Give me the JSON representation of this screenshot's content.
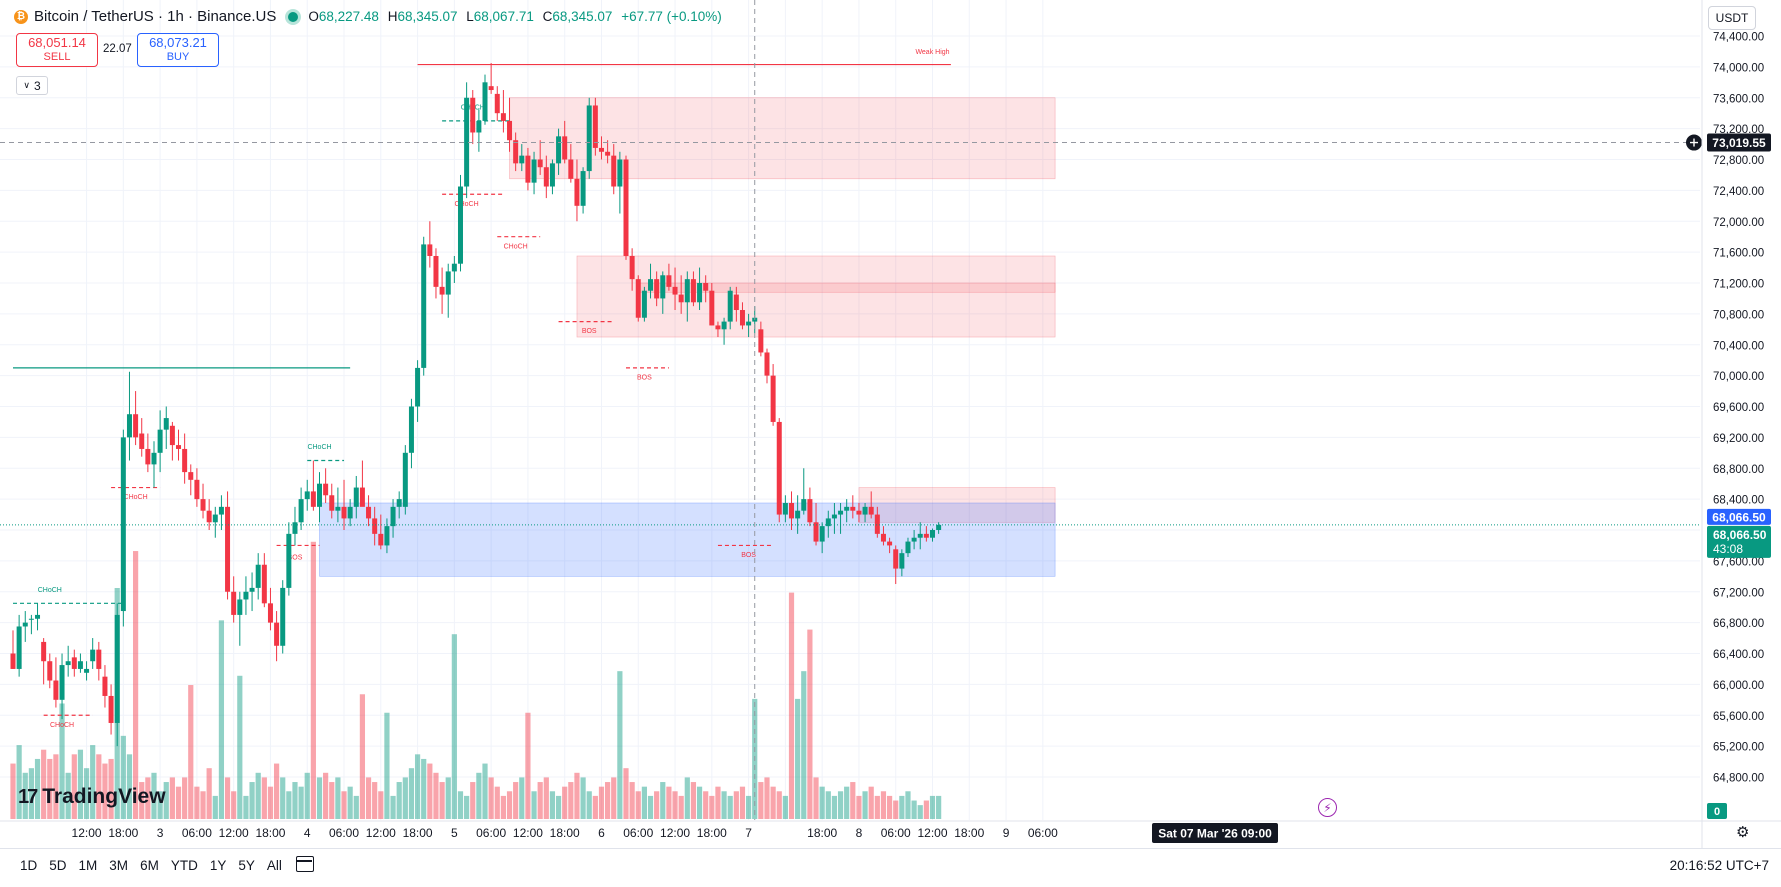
{
  "header": {
    "coin_glyph": "₿",
    "symbol": "Bitcoin / TetherUS · 1h · Binance.US",
    "ohlc": {
      "o_label": "O",
      "o": "68,227.48",
      "h_label": "H",
      "h": "68,345.07",
      "l_label": "L",
      "l": "68,067.71",
      "c_label": "C",
      "c": "68,345.07",
      "change": "+67.77 (+0.10%)"
    }
  },
  "trade": {
    "sell_price": "68,051.14",
    "sell_label": "SELL",
    "spread": "22.07",
    "buy_price": "68,073.21",
    "buy_label": "BUY"
  },
  "indicators": {
    "count": "3"
  },
  "currency": "USDT",
  "crosshair": {
    "price_label": "73,019.55",
    "time_label": "Sat 07 Mar '26   09:00"
  },
  "last_price": {
    "blue_label": "68,066.50",
    "green_label": "68,066.50",
    "countdown": "43:08"
  },
  "volume_label": "0",
  "logo": {
    "mark": "17",
    "text": "TradingView"
  },
  "ranges": [
    "1D",
    "5D",
    "1M",
    "3M",
    "6M",
    "YTD",
    "1Y",
    "5Y",
    "All"
  ],
  "clock": "20:16:52 UTC+7",
  "colors": {
    "up": "#089981",
    "down": "#f23645",
    "supply_zone": "#f23645",
    "demand_zone": "#2962ff"
  },
  "chart_data": {
    "type": "candlestick",
    "interval": "1h",
    "y_axis": {
      "ylim": [
        64700,
        74700
      ],
      "ticks": [
        64800,
        65200,
        65600,
        66000,
        66400,
        66800,
        67200,
        67600,
        68000,
        68400,
        68800,
        69200,
        69600,
        70000,
        70400,
        70800,
        71200,
        71600,
        72000,
        72400,
        72800,
        73200,
        73600,
        74000,
        74400
      ],
      "tick_labels": [
        "64,800.00",
        "65,200.00",
        "65,600.00",
        "66,000.00",
        "66,400.00",
        "66,800.00",
        "67,200.00",
        "67,600.00",
        "68,000.00",
        "68,400.00",
        "68,800.00",
        "69,200.00",
        "69,600.00",
        "70,000.00",
        "70,400.00",
        "70,800.00",
        "71,200.00",
        "71,600.00",
        "72,000.00",
        "72,400.00",
        "72,800.00",
        "73,200.00",
        "73,600.00",
        "74,000.00",
        "74,400.00"
      ]
    },
    "x_axis": {
      "tick_labels": [
        "12:00",
        "18:00",
        "3",
        "06:00",
        "12:00",
        "18:00",
        "4",
        "06:00",
        "12:00",
        "18:00",
        "5",
        "06:00",
        "12:00",
        "18:00",
        "6",
        "06:00",
        "12:00",
        "18:00",
        "7",
        "",
        "18:00",
        "8",
        "06:00",
        "12:00",
        "18:00",
        "9",
        "06:00"
      ],
      "tick_index": [
        12,
        18,
        24,
        30,
        36,
        42,
        48,
        54,
        60,
        66,
        72,
        78,
        84,
        90,
        96,
        102,
        108,
        114,
        120,
        126,
        132,
        138,
        144,
        150,
        156,
        162,
        168
      ]
    },
    "candles": [
      [
        66400,
        66700,
        66200,
        66200
      ],
      [
        66200,
        66900,
        66100,
        66750
      ],
      [
        66750,
        66950,
        66550,
        66800
      ],
      [
        66850,
        66900,
        66650,
        66850
      ],
      [
        66850,
        67050,
        66700,
        66900
      ],
      [
        66550,
        66600,
        66000,
        66300
      ],
      [
        66300,
        66400,
        65950,
        66050
      ],
      [
        66050,
        66350,
        65700,
        65800
      ],
      [
        65800,
        66400,
        65550,
        66250
      ],
      [
        66250,
        66500,
        66100,
        66300
      ],
      [
        66350,
        66450,
        66100,
        66200
      ],
      [
        66200,
        66400,
        66150,
        66300
      ],
      [
        66150,
        66300,
        66050,
        66200
      ],
      [
        66300,
        66600,
        66200,
        66450
      ],
      [
        66450,
        66550,
        66050,
        66200
      ],
      [
        66100,
        66250,
        65700,
        65850
      ],
      [
        65850,
        66000,
        65350,
        65500
      ],
      [
        65500,
        67050,
        65200,
        66900
      ],
      [
        66950,
        69300,
        66750,
        69200
      ],
      [
        69200,
        70050,
        68900,
        69500
      ],
      [
        69500,
        69800,
        69100,
        69200
      ],
      [
        69250,
        69450,
        68950,
        69050
      ],
      [
        69050,
        69250,
        68750,
        68850
      ],
      [
        68850,
        69150,
        68550,
        69000
      ],
      [
        69000,
        69550,
        68750,
        69300
      ],
      [
        69300,
        69600,
        69050,
        69450
      ],
      [
        69350,
        69400,
        68900,
        69100
      ],
      [
        69100,
        69300,
        68900,
        69050
      ],
      [
        69050,
        69250,
        68600,
        68750
      ],
      [
        68750,
        68850,
        68450,
        68650
      ],
      [
        68650,
        68800,
        68300,
        68400
      ],
      [
        68400,
        68600,
        68150,
        68250
      ],
      [
        68250,
        68400,
        68000,
        68100
      ],
      [
        68100,
        68300,
        67900,
        68200
      ],
      [
        68200,
        68450,
        68000,
        68300
      ],
      [
        68300,
        68500,
        67100,
        67200
      ],
      [
        67200,
        67400,
        66800,
        66900
      ],
      [
        66900,
        67200,
        66500,
        67100
      ],
      [
        67100,
        67400,
        66900,
        67200
      ],
      [
        67200,
        67450,
        66950,
        67250
      ],
      [
        67250,
        67700,
        67100,
        67550
      ],
      [
        67550,
        67700,
        67000,
        67050
      ],
      [
        67050,
        67250,
        66700,
        66800
      ],
      [
        66800,
        66950,
        66300,
        66500
      ],
      [
        66500,
        67350,
        66400,
        67250
      ],
      [
        67250,
        68100,
        67150,
        67950
      ],
      [
        67950,
        68300,
        67800,
        68100
      ],
      [
        68100,
        68550,
        68000,
        68400
      ],
      [
        68400,
        68650,
        68250,
        68500
      ],
      [
        68500,
        68900,
        68250,
        68300
      ],
      [
        68300,
        68750,
        68100,
        68600
      ],
      [
        68600,
        68800,
        68350,
        68450
      ],
      [
        68450,
        68600,
        68150,
        68250
      ],
      [
        68250,
        68550,
        68100,
        68300
      ],
      [
        68300,
        68650,
        68000,
        68150
      ],
      [
        68150,
        68400,
        68050,
        68300
      ],
      [
        68300,
        68700,
        68150,
        68550
      ],
      [
        68550,
        68900,
        68400,
        68300
      ],
      [
        68300,
        68450,
        68050,
        68150
      ],
      [
        68150,
        68300,
        67800,
        67950
      ],
      [
        67950,
        68200,
        67750,
        67800
      ],
      [
        67800,
        68150,
        67700,
        68050
      ],
      [
        68050,
        68400,
        67900,
        68300
      ],
      [
        68300,
        68500,
        68150,
        68400
      ],
      [
        68300,
        69100,
        68200,
        69000
      ],
      [
        69000,
        69700,
        68800,
        69600
      ],
      [
        69600,
        70200,
        69400,
        70100
      ],
      [
        70100,
        71800,
        70000,
        71700
      ],
      [
        71700,
        72000,
        71400,
        71550
      ],
      [
        71550,
        71650,
        71000,
        71150
      ],
      [
        71150,
        71400,
        70800,
        71050
      ],
      [
        71050,
        71450,
        70750,
        71350
      ],
      [
        71350,
        71550,
        71200,
        71450
      ],
      [
        71450,
        72600,
        71350,
        72450
      ],
      [
        72450,
        73800,
        72300,
        73600
      ],
      [
        73600,
        73700,
        73000,
        73150
      ],
      [
        73150,
        73450,
        72900,
        73300
      ],
      [
        73300,
        73900,
        73250,
        73800
      ],
      [
        73750,
        74050,
        73650,
        73700
      ],
      [
        73650,
        73750,
        73300,
        73400
      ],
      [
        73400,
        73700,
        73150,
        73300
      ],
      [
        73300,
        73600,
        72900,
        73050
      ],
      [
        73050,
        73150,
        72650,
        72750
      ],
      [
        72750,
        73000,
        72650,
        72850
      ],
      [
        72850,
        72950,
        72400,
        72500
      ],
      [
        72500,
        72900,
        72350,
        72800
      ],
      [
        72800,
        73050,
        72600,
        72700
      ],
      [
        72700,
        72850,
        72300,
        72450
      ],
      [
        72450,
        72800,
        72350,
        72750
      ],
      [
        72750,
        73200,
        72600,
        73100
      ],
      [
        73100,
        73300,
        72750,
        72800
      ],
      [
        72800,
        73000,
        72500,
        72550
      ],
      [
        72550,
        72800,
        72000,
        72200
      ],
      [
        72200,
        72700,
        72100,
        72650
      ],
      [
        72650,
        73600,
        72550,
        73500
      ],
      [
        73500,
        73600,
        72850,
        72950
      ],
      [
        72950,
        73100,
        72800,
        72900
      ],
      [
        72900,
        73050,
        72750,
        72850
      ],
      [
        72850,
        73000,
        72350,
        72450
      ],
      [
        72450,
        72900,
        72100,
        72800
      ],
      [
        72800,
        72850,
        71500,
        71550
      ],
      [
        71550,
        71650,
        71100,
        71250
      ],
      [
        71250,
        71300,
        70700,
        70750
      ],
      [
        70750,
        71150,
        70700,
        71100
      ],
      [
        71100,
        71450,
        71000,
        71250
      ],
      [
        71250,
        71350,
        70900,
        71000
      ],
      [
        71000,
        71350,
        70800,
        71300
      ],
      [
        71300,
        71450,
        71100,
        71150
      ],
      [
        71150,
        71400,
        70850,
        71050
      ],
      [
        71050,
        71300,
        70800,
        70950
      ],
      [
        70950,
        71350,
        70700,
        71250
      ],
      [
        71250,
        71350,
        70900,
        70950
      ],
      [
        70950,
        71400,
        70850,
        71200
      ],
      [
        71200,
        71300,
        70950,
        71100
      ],
      [
        71100,
        71200,
        70650,
        70650
      ],
      [
        70650,
        70700,
        70500,
        70600
      ],
      [
        70600,
        70750,
        70400,
        70700
      ],
      [
        70700,
        71150,
        70600,
        71100
      ],
      [
        71050,
        71150,
        70700,
        70850
      ],
      [
        70850,
        70950,
        70600,
        70650
      ],
      [
        70650,
        70800,
        70500,
        70700
      ],
      [
        70700,
        70900,
        70550,
        70750
      ],
      [
        70600,
        70700,
        70250,
        70300
      ],
      [
        70300,
        70350,
        69900,
        70000
      ],
      [
        70000,
        70150,
        69350,
        69400
      ],
      [
        69400,
        69450,
        68100,
        68200
      ],
      [
        68200,
        68450,
        68100,
        68350
      ],
      [
        68350,
        68500,
        68000,
        68150
      ],
      [
        68150,
        68450,
        67950,
        68250
      ],
      [
        68250,
        68800,
        68200,
        68400
      ],
      [
        68400,
        68550,
        68050,
        68100
      ],
      [
        68100,
        68350,
        67800,
        67850
      ],
      [
        67850,
        68100,
        67700,
        68050
      ],
      [
        68050,
        68250,
        67900,
        68150
      ],
      [
        68150,
        68350,
        67950,
        68200
      ],
      [
        68200,
        68350,
        67950,
        68250
      ],
      [
        68250,
        68400,
        68100,
        68300
      ],
      [
        68300,
        68450,
        68150,
        68250
      ],
      [
        68250,
        68350,
        68100,
        68200
      ],
      [
        68200,
        68350,
        68100,
        68300
      ],
      [
        68300,
        68500,
        68150,
        68200
      ],
      [
        68200,
        68300,
        67900,
        67950
      ],
      [
        67950,
        68050,
        67800,
        67850
      ],
      [
        67850,
        67900,
        67700,
        67800
      ],
      [
        67750,
        67800,
        67300,
        67500
      ],
      [
        67500,
        67750,
        67400,
        67700
      ],
      [
        67700,
        67900,
        67650,
        67850
      ],
      [
        67850,
        68000,
        67750,
        67900
      ],
      [
        67900,
        68100,
        67750,
        67950
      ],
      [
        67950,
        68050,
        67850,
        67900
      ],
      [
        67900,
        68020,
        67850,
        68000
      ],
      [
        68000,
        68100,
        67950,
        68066.5
      ]
    ],
    "volumes": [
      1.2,
      1.6,
      1.0,
      1.1,
      1.3,
      1.5,
      1.3,
      1.4,
      1.2,
      1.0,
      1.4,
      1.5,
      1.1,
      1.6,
      1.4,
      1.2,
      1.3,
      1.5,
      1.8,
      1.4,
      0.7,
      0.8,
      0.9,
      1.0,
      0.6,
      0.8,
      0.9,
      0.7,
      0.9,
      0.8,
      0.7,
      0.6,
      1.1,
      0.5,
      0.4,
      0.9,
      0.6,
      0.7,
      0.5,
      0.8,
      1.0,
      0.9,
      0.7,
      1.2,
      0.9,
      0.6,
      0.8,
      0.7,
      1.0,
      1.3,
      0.9,
      1.0,
      0.8,
      0.9,
      0.6,
      0.7,
      0.5,
      1.0,
      0.9,
      0.8,
      0.6,
      0.7,
      0.5,
      0.8,
      0.9,
      1.1,
      1.4,
      1.3,
      1.2,
      1.0,
      0.8,
      0.9,
      0.7,
      0.6,
      0.5,
      0.8,
      1.0,
      1.2,
      0.9,
      0.7,
      0.5,
      0.6,
      0.8,
      0.9,
      0.7,
      0.6,
      0.8,
      0.9,
      0.6,
      0.5,
      0.7,
      0.8,
      1.0,
      0.9,
      0.6,
      0.5,
      0.7,
      0.8,
      0.9,
      1.0,
      1.1,
      0.8,
      0.6,
      0.7,
      0.5,
      0.6,
      0.8,
      0.7,
      0.6,
      0.5,
      0.9,
      0.8,
      0.7,
      0.6,
      0.5,
      0.7,
      0.6,
      0.5,
      0.6,
      0.7,
      0.5,
      0.6,
      0.8,
      0.9,
      0.7,
      0.6,
      0.5,
      0.6,
      0.7,
      0.5,
      0.8,
      0.9,
      0.7,
      0.6,
      0.5,
      0.6,
      0.7,
      0.8,
      0.5,
      0.6,
      0.7,
      0.5,
      0.6,
      0.5,
      0.4,
      0.5,
      0.6,
      0.4,
      0.3,
      0.4
    ],
    "volume_spikes": {
      "8": 2.5,
      "17": 5.0,
      "20": 5.8,
      "29": 2.9,
      "34": 4.3,
      "37": 3.1,
      "49": 6.0,
      "57": 2.7,
      "61": 2.3,
      "72": 4.0,
      "84": 2.3,
      "99": 3.2,
      "121": 2.6,
      "127": 4.9,
      "128": 2.6,
      "129": 3.2,
      "130": 4.1
    },
    "supply_zones": [
      {
        "x0": 81,
        "x1": 170,
        "y0": 72550,
        "y1": 73600
      },
      {
        "x0": 92,
        "x1": 170,
        "y0": 70500,
        "y1": 71550
      },
      {
        "x0": 102,
        "x1": 170,
        "y0": 71080,
        "y1": 71200
      },
      {
        "x0": 138,
        "x1": 170,
        "y0": 68100,
        "y1": 68550
      }
    ],
    "demand_zones": [
      {
        "x0": 50,
        "x1": 170,
        "y0": 67400,
        "y1": 68350
      }
    ],
    "structure_lines": [
      {
        "x0": 0,
        "x1": 18,
        "y": 67050,
        "color": "up",
        "dash": true,
        "label": "CHoCH",
        "lx": 6,
        "ly": 67200
      },
      {
        "x0": 5,
        "x1": 13,
        "y": 65600,
        "color": "down",
        "dash": true,
        "label": "CHoCH",
        "lx": 8,
        "ly": 65450
      },
      {
        "x0": 16,
        "x1": 24,
        "y": 68550,
        "color": "down",
        "dash": true,
        "label": "CHoCH",
        "lx": 20,
        "ly": 68400
      },
      {
        "x0": 0,
        "x1": 55,
        "y": 70100,
        "color": "up",
        "dash": false,
        "label": "",
        "lx": 0,
        "ly": 0
      },
      {
        "x0": 43,
        "x1": 50,
        "y": 67800,
        "color": "down",
        "dash": true,
        "label": "BOS",
        "lx": 46,
        "ly": 67620
      },
      {
        "x0": 48,
        "x1": 54,
        "y": 68900,
        "color": "up",
        "dash": true,
        "label": "CHoCH",
        "lx": 50,
        "ly": 69050
      },
      {
        "x0": 70,
        "x1": 81,
        "y": 73300,
        "color": "up",
        "dash": true,
        "label": "CHoCH",
        "lx": 75,
        "ly": 73450
      },
      {
        "x0": 70,
        "x1": 80,
        "y": 72350,
        "color": "down",
        "dash": true,
        "label": "CHoCH",
        "lx": 74,
        "ly": 72200
      },
      {
        "x0": 79,
        "x1": 86,
        "y": 71800,
        "color": "down",
        "dash": true,
        "label": "CHoCH",
        "lx": 82,
        "ly": 71650
      },
      {
        "x0": 89,
        "x1": 98,
        "y": 70700,
        "color": "down",
        "dash": true,
        "label": "BOS",
        "lx": 94,
        "ly": 70550
      },
      {
        "x0": 100,
        "x1": 107,
        "y": 70100,
        "color": "down",
        "dash": true,
        "label": "BOS",
        "lx": 103,
        "ly": 69950
      },
      {
        "x0": 115,
        "x1": 124,
        "y": 67800,
        "color": "down",
        "dash": true,
        "label": "BOS",
        "lx": 120,
        "ly": 67650
      },
      {
        "x0": 66,
        "x1": 153,
        "y": 74030,
        "color": "down",
        "dash": false,
        "label": "Weak High",
        "lx": 150,
        "ly": 74170
      }
    ],
    "crosshair": {
      "x_index": 121,
      "y": 73019.55
    },
    "last_price": 68066.5
  }
}
